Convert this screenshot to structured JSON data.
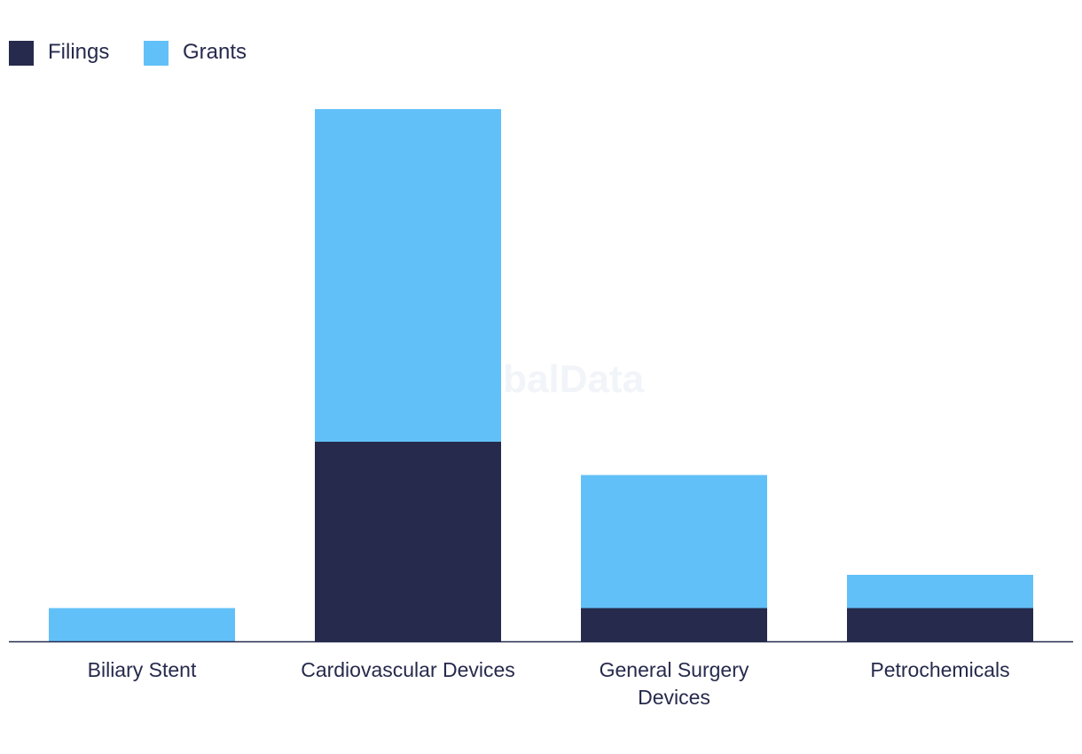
{
  "watermark": "GlobalData",
  "legend": {
    "position": "top-left",
    "items": [
      {
        "name": "Filings",
        "color": "#262a4c"
      },
      {
        "name": "Grants",
        "color": "#62c0f8"
      }
    ]
  },
  "chart_data": {
    "type": "bar",
    "stacked": true,
    "title": "",
    "xlabel": "",
    "ylabel": "",
    "categories": [
      [
        "Biliary Stent"
      ],
      [
        "Cardiovascular Devices"
      ],
      [
        "General Surgery",
        "Devices"
      ],
      [
        "Petrochemicals"
      ]
    ],
    "series": [
      {
        "name": "Filings",
        "color": "#262a4c",
        "values": [
          0,
          6,
          1,
          1
        ]
      },
      {
        "name": "Grants",
        "color": "#62c0f8",
        "values": [
          1,
          10,
          4,
          1
        ]
      }
    ],
    "ylim": [
      0,
      16
    ],
    "grid": false,
    "y_axis_visible": false
  }
}
